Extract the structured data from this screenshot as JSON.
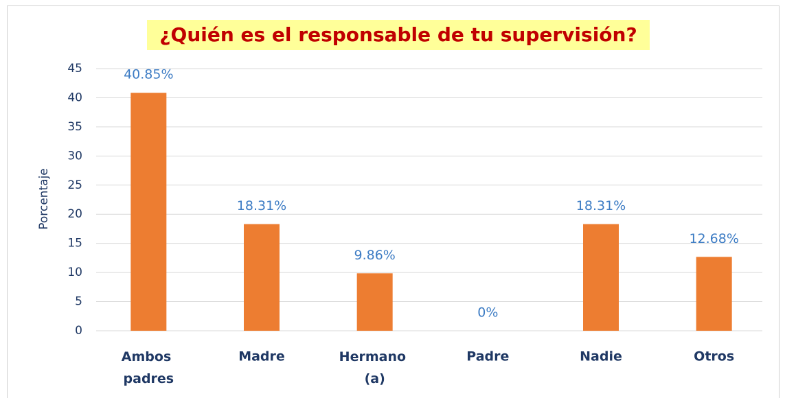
{
  "chart_data": {
    "type": "bar",
    "title": "¿Quién es el responsable de tu supervisión?",
    "y_label": "Porcentaje",
    "categories": [
      "Ambos padres",
      "Madre",
      "Hermano (a)",
      "Padre",
      "Nadie",
      "Otros"
    ],
    "values": [
      40.85,
      18.31,
      9.86,
      0,
      18.31,
      12.68
    ],
    "value_labels": [
      "40.85%",
      "18.31%",
      "9.86%",
      "0%",
      "18.31%",
      "12.68%"
    ],
    "color": "#ed7d31",
    "ylim": [
      0,
      45
    ],
    "yticks": [
      0,
      5,
      10,
      15,
      20,
      25,
      30,
      35,
      40,
      45
    ],
    "grid": true
  }
}
